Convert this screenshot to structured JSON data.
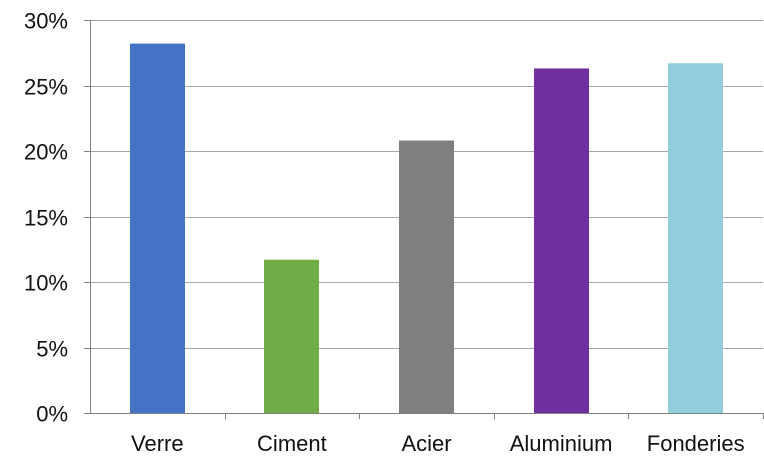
{
  "chart_data": {
    "type": "bar",
    "categories": [
      "Verre",
      "Ciment",
      "Acier",
      "Aluminium",
      "Fonderies"
    ],
    "values": [
      28.2,
      11.7,
      20.8,
      26.3,
      26.7
    ],
    "colors": [
      "#4472c4",
      "#70ad47",
      "#7f7f7f",
      "#7030a0",
      "#92cddc"
    ],
    "y_ticks": [
      0,
      5,
      10,
      15,
      20,
      25,
      30
    ],
    "y_tick_labels": [
      "0%",
      "5%",
      "10%",
      "15%",
      "20%",
      "25%",
      "30%"
    ],
    "ylim": [
      0,
      30
    ],
    "grid": true,
    "legend": false
  }
}
